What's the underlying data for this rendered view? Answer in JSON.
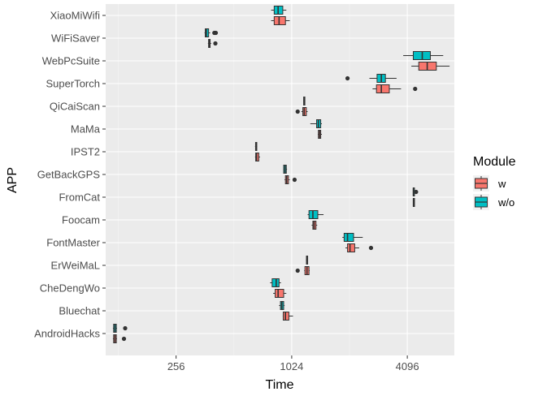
{
  "chart_data": {
    "type": "boxplot",
    "orientation": "horizontal",
    "xlabel": "Time",
    "ylabel": "APP",
    "x_scale": "log2",
    "xlim": [
      110,
      7200
    ],
    "x_ticks": [
      256,
      1024,
      4096
    ],
    "x_tick_labels": [
      "256",
      "1024",
      "4096"
    ],
    "grid": true,
    "legend": {
      "title": "Module",
      "position": "right",
      "entries": [
        {
          "label": "w",
          "color": "#F8766D"
        },
        {
          "label": "w/o",
          "color": "#00BFC4"
        }
      ]
    },
    "categories": [
      "XiaoMiWifi",
      "WiFiSaver",
      "WebPcSuite",
      "SuperTorch",
      "QiCaiScan",
      "MaMa",
      "IPST2",
      "GetBackGPS",
      "FromCat",
      "Foocam",
      "FontMaster",
      "ErWeiMaL",
      "CheDengWo",
      "Bluechat",
      "AndroidHacks"
    ],
    "series": [
      {
        "name": "w",
        "color": "#F8766D",
        "boxes": [
          {
            "app": "XiaoMiWifi",
            "min": 800,
            "q1": 830,
            "median": 880,
            "q3": 950,
            "max": 1000,
            "outliers": []
          },
          {
            "app": "WiFiSaver",
            "min": 375,
            "q1": 378,
            "median": 380,
            "q3": 385,
            "max": 390,
            "outliers": [
              410
            ]
          },
          {
            "app": "WebPcSuite",
            "min": 4300,
            "q1": 4700,
            "median": 5200,
            "q3": 5800,
            "max": 6800,
            "outliers": []
          },
          {
            "app": "SuperTorch",
            "min": 2700,
            "q1": 2830,
            "median": 3000,
            "q3": 3300,
            "max": 3800,
            "outliers": [
              4500
            ]
          },
          {
            "app": "QiCaiScan",
            "min": 1150,
            "q1": 1170,
            "median": 1190,
            "q3": 1220,
            "max": 1240,
            "outliers": [
              1100
            ]
          },
          {
            "app": "MaMa",
            "min": 1400,
            "q1": 1410,
            "median": 1430,
            "q3": 1450,
            "max": 1470,
            "outliers": []
          },
          {
            "app": "IPST2",
            "min": 660,
            "q1": 665,
            "median": 672,
            "q3": 690,
            "max": 700,
            "outliers": []
          },
          {
            "app": "GetBackGPS",
            "min": 940,
            "q1": 950,
            "median": 965,
            "q3": 985,
            "max": 1000,
            "outliers": [
              1060
            ]
          },
          {
            "app": "FromCat",
            "min": 4390,
            "q1": 4400,
            "median": 4410,
            "q3": 4425,
            "max": 4440,
            "outliers": []
          },
          {
            "app": "Foocam",
            "min": 1300,
            "q1": 1320,
            "median": 1340,
            "q3": 1370,
            "max": 1390,
            "outliers": []
          },
          {
            "app": "FontMaster",
            "min": 1950,
            "q1": 2000,
            "median": 2060,
            "q3": 2180,
            "max": 2300,
            "outliers": [
              2650
            ]
          },
          {
            "app": "ErWeiMaL",
            "min": 1190,
            "q1": 1200,
            "median": 1230,
            "q3": 1260,
            "max": 1270,
            "outliers": [
              1100
            ]
          },
          {
            "app": "CheDengWo",
            "min": 820,
            "q1": 840,
            "median": 870,
            "q3": 930,
            "max": 960,
            "outliers": []
          },
          {
            "app": "Bluechat",
            "min": 920,
            "q1": 925,
            "median": 950,
            "q3": 990,
            "max": 1040,
            "outliers": []
          },
          {
            "app": "AndroidHacks",
            "min": 120,
            "q1": 121,
            "median": 123,
            "q3": 125,
            "max": 126,
            "outliers": [
              137
            ]
          }
        ]
      },
      {
        "name": "w/o",
        "color": "#00BFC4",
        "boxes": [
          {
            "app": "XiaoMiWifi",
            "min": 800,
            "q1": 830,
            "median": 870,
            "q3": 920,
            "max": 960,
            "outliers": []
          },
          {
            "app": "WiFiSaver",
            "min": 360,
            "q1": 363,
            "median": 368,
            "q3": 378,
            "max": 385,
            "outliers": [
              405,
              412
            ]
          },
          {
            "app": "WebPcSuite",
            "min": 3900,
            "q1": 4400,
            "median": 4900,
            "q3": 5400,
            "max": 6300,
            "outliers": []
          },
          {
            "app": "SuperTorch",
            "min": 2600,
            "q1": 2850,
            "median": 3000,
            "q3": 3150,
            "max": 3600,
            "outliers": [
              2000
            ]
          },
          {
            "app": "QiCaiScan",
            "min": 1178,
            "q1": 1182,
            "median": 1188,
            "q3": 1195,
            "max": 1200,
            "outliers": []
          },
          {
            "app": "MaMa",
            "min": 1280,
            "q1": 1380,
            "median": 1410,
            "q3": 1450,
            "max": 1470,
            "outliers": []
          },
          {
            "app": "IPST2",
            "min": 660,
            "q1": 664,
            "median": 668,
            "q3": 672,
            "max": 676,
            "outliers": []
          },
          {
            "app": "GetBackGPS",
            "min": 925,
            "q1": 930,
            "median": 945,
            "q3": 960,
            "max": 968,
            "outliers": []
          },
          {
            "app": "FromCat",
            "min": 4390,
            "q1": 4398,
            "median": 4405,
            "q3": 4415,
            "max": 4420,
            "outliers": [
              4550
            ]
          },
          {
            "app": "Foocam",
            "min": 1240,
            "q1": 1260,
            "median": 1320,
            "q3": 1400,
            "max": 1500,
            "outliers": []
          },
          {
            "app": "FontMaster",
            "min": 1880,
            "q1": 1920,
            "median": 2000,
            "q3": 2150,
            "max": 2400,
            "outliers": []
          },
          {
            "app": "ErWeiMaL",
            "min": 1215,
            "q1": 1222,
            "median": 1230,
            "q3": 1238,
            "max": 1245,
            "outliers": []
          },
          {
            "app": "CheDengWo",
            "min": 790,
            "q1": 810,
            "median": 850,
            "q3": 880,
            "max": 900,
            "outliers": []
          },
          {
            "app": "Bluechat",
            "min": 880,
            "q1": 895,
            "median": 910,
            "q3": 930,
            "max": 940,
            "outliers": []
          },
          {
            "app": "AndroidHacks",
            "min": 120,
            "q1": 121,
            "median": 123,
            "q3": 125,
            "max": 126,
            "outliers": [
              139
            ]
          }
        ]
      }
    ]
  }
}
